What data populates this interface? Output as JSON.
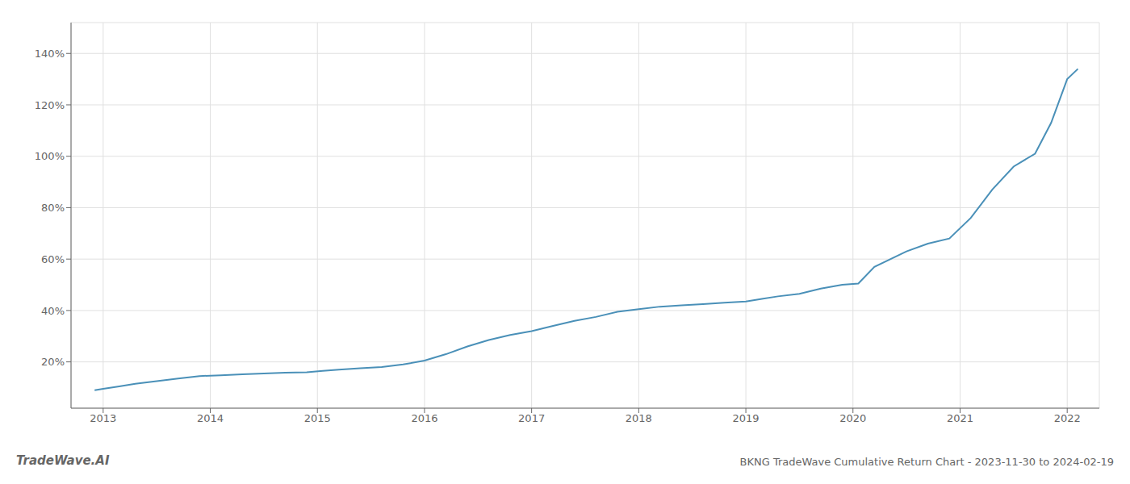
{
  "chart_data": {
    "type": "line",
    "title": "BKNG TradeWave Cumulative Return Chart - 2023-11-30 to 2024-02-19",
    "annotations": [
      "TradeWave.AI"
    ],
    "x": [
      2012.92,
      2013.0,
      2013.15,
      2013.3,
      2013.5,
      2013.7,
      2013.9,
      2014.1,
      2014.3,
      2014.5,
      2014.7,
      2014.9,
      2015.05,
      2015.2,
      2015.4,
      2015.6,
      2015.8,
      2016.0,
      2016.2,
      2016.4,
      2016.6,
      2016.8,
      2017.0,
      2017.2,
      2017.4,
      2017.6,
      2017.8,
      2018.0,
      2018.2,
      2018.4,
      2018.6,
      2018.8,
      2019.0,
      2019.15,
      2019.3,
      2019.5,
      2019.7,
      2019.9,
      2020.05,
      2020.2,
      2020.5,
      2020.7,
      2020.9,
      2021.1,
      2021.3,
      2021.5,
      2021.7,
      2021.85,
      2022.0,
      2022.1
    ],
    "values": [
      9,
      9.5,
      10.5,
      11.5,
      12.5,
      13.5,
      14.5,
      14.8,
      15.2,
      15.5,
      15.8,
      16.0,
      16.5,
      17.0,
      17.5,
      18.0,
      19.0,
      20.5,
      23.0,
      26.0,
      28.5,
      30.5,
      32.0,
      34.0,
      36.0,
      37.5,
      39.5,
      40.5,
      41.5,
      42.0,
      42.5,
      43.0,
      43.5,
      44.5,
      45.5,
      46.5,
      48.5,
      50.0,
      50.5,
      57.0,
      63.0,
      66.0,
      68.0,
      76.0,
      87.0,
      96.0,
      101.0,
      113.0,
      130.0,
      134.0
    ],
    "color": "#4a90b8",
    "xlim": [
      2012.7,
      2022.3
    ],
    "xticks": [
      2013,
      2014,
      2015,
      2016,
      2017,
      2018,
      2019,
      2020,
      2021,
      2022
    ],
    "ylim": [
      2,
      152
    ],
    "yticks": [
      {
        "value": 20,
        "label": "20%"
      },
      {
        "value": 40,
        "label": "40%"
      },
      {
        "value": 60,
        "label": "60%"
      },
      {
        "value": 80,
        "label": "80%"
      },
      {
        "value": 100,
        "label": "100%"
      },
      {
        "value": 120,
        "label": "120%"
      },
      {
        "value": 140,
        "label": "140%"
      }
    ],
    "grid": true
  }
}
